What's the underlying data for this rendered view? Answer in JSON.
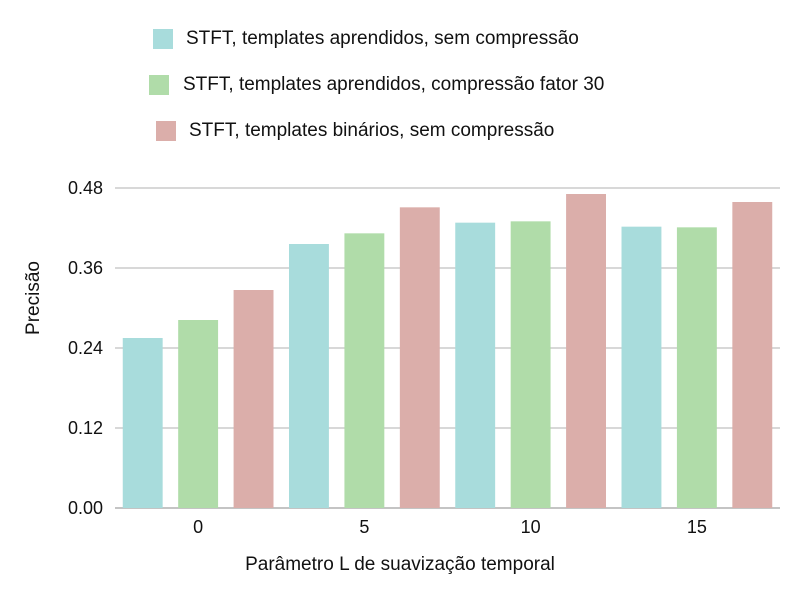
{
  "chart_data": {
    "type": "bar",
    "categories": [
      "0",
      "5",
      "10",
      "15"
    ],
    "series": [
      {
        "name": "STFT, templates aprendidos, sem compressão",
        "color": "#a8dcdc",
        "values": [
          0.255,
          0.396,
          0.428,
          0.422
        ]
      },
      {
        "name": "STFT, templates aprendidos, compressão fator 30",
        "color": "#b0dca9",
        "values": [
          0.282,
          0.412,
          0.43,
          0.421
        ]
      },
      {
        "name": "STFT, templates binários, sem compressão",
        "color": "#dbaeaa",
        "values": [
          0.327,
          0.451,
          0.471,
          0.459
        ]
      }
    ],
    "xlabel": "Parâmetro L de suavização temporal",
    "ylabel": "Precisão",
    "yticks": [
      "0.00",
      "0.12",
      "0.24",
      "0.36",
      "0.48"
    ],
    "ylim": [
      0,
      0.48
    ],
    "grid": "horizontal",
    "legend_position": "top"
  }
}
